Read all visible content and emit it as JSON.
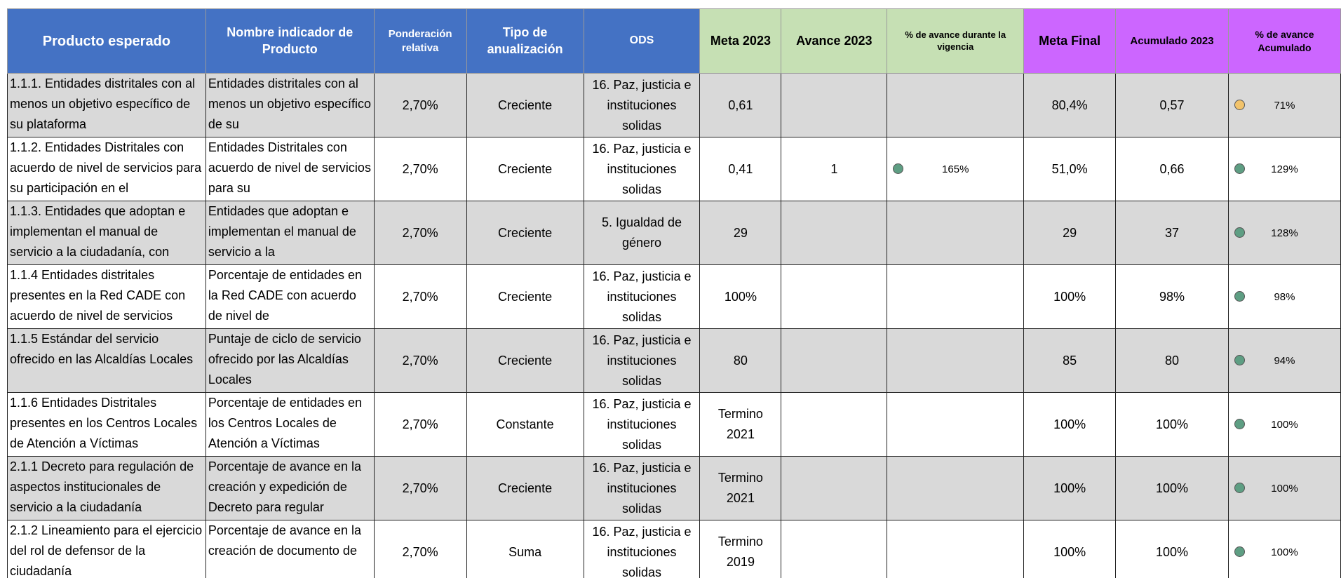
{
  "table": {
    "header": [
      "Producto esperado",
      "Nombre indicador de Producto",
      "Ponderación relativa",
      "Tipo de anualización",
      "ODS",
      "Meta 2023",
      "Avance 2023",
      "% de avance durante la vigencia",
      "Meta Final",
      "Acumulado 2023",
      "% de avance Acumulado"
    ],
    "header_colors": [
      "#4472c4",
      "#4472c4",
      "#4472c4",
      "#4472c4",
      "#4472c4",
      "#c6e0b4",
      "#c6e0b4",
      "#c6e0b4",
      "#cc66ff",
      "#cc66ff",
      "#cc66ff"
    ],
    "rows": [
      [
        "1.1.1. Entidades distritales con al menos un objetivo específico de su plataforma",
        "Entidades distritales con al menos un objetivo específico de su",
        "2,70%",
        "Creciente",
        "16. Paz, justicia e instituciones solidas",
        "0,61",
        null,
        null,
        "80,4%",
        "0,57",
        "71%"
      ],
      [
        "1.1.2. Entidades Distritales con acuerdo de nivel de servicios para su participación en el",
        "Entidades Distritales con acuerdo de nivel de servicios para su",
        "2,70%",
        "Creciente",
        "16. Paz, justicia e instituciones solidas",
        "0,41",
        "1",
        "165%",
        "51,0%",
        "0,66",
        "129%"
      ],
      [
        "1.1.3. Entidades que adoptan e implementan el manual de servicio a la ciudadanía, con",
        "Entidades que adoptan e implementan el manual de servicio a la",
        "2,70%",
        "Creciente",
        "5. Igualdad de género",
        "29",
        null,
        null,
        "29",
        "37",
        "128%"
      ],
      [
        "1.1.4 Entidades distritales presentes en la Red CADE con acuerdo de nivel de servicios",
        "Porcentaje de entidades en la Red CADE con acuerdo de nivel de",
        "2,70%",
        "Creciente",
        "16. Paz, justicia e instituciones solidas",
        "100%",
        null,
        null,
        "100%",
        "98%",
        "98%"
      ],
      [
        "1.1.5 Estándar del servicio ofrecido en las Alcaldías Locales",
        "Puntaje de ciclo de servicio ofrecido por las Alcaldías Locales",
        "2,70%",
        "Creciente",
        "16. Paz, justicia e instituciones solidas",
        "80",
        null,
        null,
        "85",
        "80",
        "94%"
      ],
      [
        "1.1.6 Entidades Distritales presentes en los Centros Locales de Atención a Víctimas",
        "Porcentaje de entidades en los Centros Locales de Atención a Víctimas",
        "2,70%",
        "Constante",
        "16. Paz, justicia e instituciones solidas",
        "Termino 2021",
        null,
        null,
        "100%",
        "100%",
        "100%"
      ],
      [
        "2.1.1 Decreto para regulación de aspectos institucionales de servicio a la ciudadanía",
        "Porcentaje de avance en la creación y expedición de Decreto para regular",
        "2,70%",
        "Creciente",
        "16. Paz, justicia e instituciones solidas",
        "Termino 2021",
        null,
        null,
        "100%",
        "100%",
        "100%"
      ],
      [
        "2.1.2 Lineamiento para el ejercicio del rol de defensor de la ciudadanía",
        "Porcentaje de avance en la creación de documento de",
        "2,70%",
        "Suma",
        "16. Paz, justicia e instituciones solidas",
        "Termino 2019",
        null,
        null,
        "100%",
        "100%",
        "100%"
      ]
    ],
    "progress_icon_colors": [
      null,
      "#5e9e83",
      null,
      null,
      null,
      null,
      null,
      null
    ],
    "accumulated_icon_colors": [
      "#f2c36b",
      "#5e9e83",
      "#5e9e83",
      "#5e9e83",
      "#5e9e83",
      "#5e9e83",
      "#5e9e83",
      "#5e9e83"
    ],
    "row_colors": [
      "#d9d9d9",
      "#ffffff"
    ]
  }
}
